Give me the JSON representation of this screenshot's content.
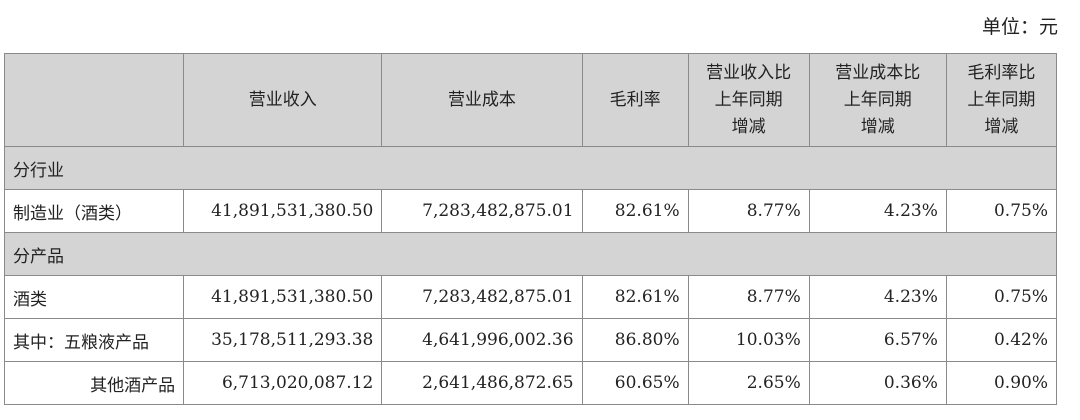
{
  "unit_label": "单位：元",
  "headers": [
    "",
    "营业收入",
    "营业成本",
    "毛利率",
    "营业收入比\n上年同期\n增减",
    "营业成本比\n上年同期\n增减",
    "毛利率比\n上年同期\n增减"
  ],
  "sections": [
    {
      "title": "分行业",
      "rows": [
        {
          "label": "制造业（酒类）",
          "revenue": "41,891,531,380.50",
          "cost": "7,283,482,875.01",
          "gross_margin": "82.61%",
          "revenue_change": "8.77%",
          "cost_change": "4.23%",
          "margin_change": "0.75%"
        }
      ]
    },
    {
      "title": "分产品",
      "rows": [
        {
          "label": "酒类",
          "revenue": "41,891,531,380.50",
          "cost": "7,283,482,875.01",
          "gross_margin": "82.61%",
          "revenue_change": "8.77%",
          "cost_change": "4.23%",
          "margin_change": "0.75%"
        },
        {
          "label": "其中：五粮液产品",
          "revenue": "35,178,511,293.38",
          "cost": "4,641,996,002.36",
          "gross_margin": "86.80%",
          "revenue_change": "10.03%",
          "cost_change": "6.57%",
          "margin_change": "0.42%"
        },
        {
          "label": "其他酒产品",
          "revenue": "6,713,020,087.12",
          "cost": "2,641,486,872.65",
          "gross_margin": "60.65%",
          "revenue_change": "2.65%",
          "cost_change": "0.36%",
          "margin_change": "0.90%"
        }
      ]
    }
  ]
}
